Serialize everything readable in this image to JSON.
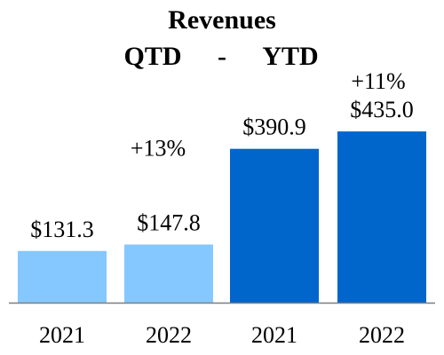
{
  "chart_data": {
    "type": "bar",
    "title": "Revenues",
    "subtitle": {
      "left": "QTD",
      "separator": "-",
      "right": "YTD"
    },
    "categories": [
      "2021",
      "2022",
      "2021",
      "2022"
    ],
    "values": [
      131.3,
      147.8,
      390.9,
      435.0
    ],
    "value_labels": [
      "$131.3",
      "$147.8",
      "$390.9",
      "$435.0"
    ],
    "groups": [
      "QTD",
      "QTD",
      "YTD",
      "YTD"
    ],
    "growth_labels": [
      {
        "group": "QTD",
        "text": "+13%"
      },
      {
        "group": "YTD",
        "text": "+11%"
      }
    ],
    "colors": {
      "QTD": "#85C8FF",
      "YTD": "#0066CC",
      "axis": "#7F7F7F"
    },
    "ylim": [
      0,
      470
    ],
    "grid": false,
    "xlabel": "",
    "ylabel": ""
  }
}
